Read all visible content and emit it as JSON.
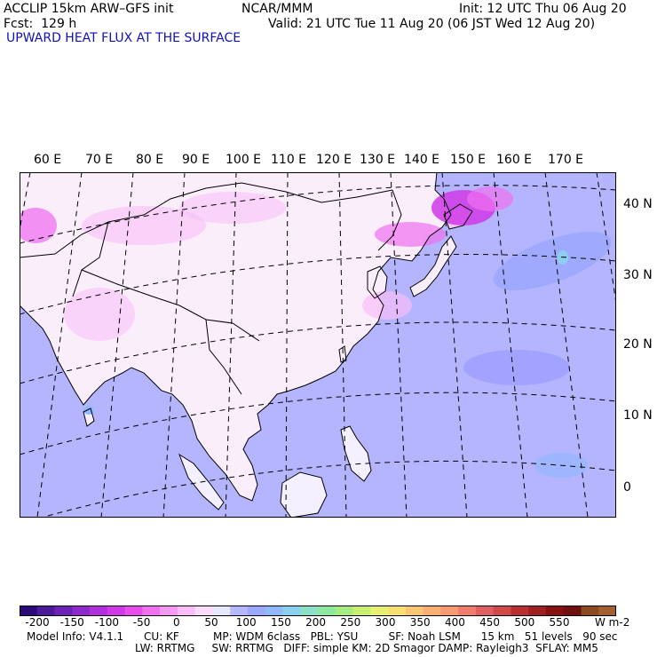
{
  "header": {
    "model": "ACCLIP 15km ARW–GFS init",
    "center": "NCAR/MMM",
    "init": "Init: 12 UTC Thu 06 Aug 20",
    "fcst": "Fcst:  129 h",
    "valid": "Valid: 21 UTC Tue 11 Aug 20 (06 JST Wed 12 Aug 20)",
    "field": "UPWARD HEAT FLUX AT THE SURFACE"
  },
  "lon_labels": [
    "60 E",
    "70 E",
    "80 E",
    "90 E",
    "100 E",
    "110 E",
    "120 E",
    "130 E",
    "140 E",
    "150 E",
    "160 E",
    "170 E"
  ],
  "lat_labels": [
    "40 N",
    "30 N",
    "20 N",
    "10 N",
    "0"
  ],
  "colorbar": {
    "ticks": [
      "-200",
      "-150",
      "-100",
      "-50",
      "0",
      "50",
      "100",
      "150",
      "200",
      "250",
      "300",
      "350",
      "400",
      "450",
      "500",
      "550"
    ],
    "unit": "W m-2",
    "colors": [
      "#2a0a78",
      "#4b1a9c",
      "#6a22b8",
      "#8c2ad0",
      "#b030e0",
      "#d038e8",
      "#e84cec",
      "#f070f0",
      "#f498f4",
      "#f8bef8",
      "#fbdcfb",
      "#e8e8ff",
      "#b8b8ff",
      "#9aa8ff",
      "#8fb8ff",
      "#8cd0f0",
      "#8ce0c8",
      "#90e8a0",
      "#a8ec80",
      "#c8f070",
      "#e8f070",
      "#f8e070",
      "#f8c870",
      "#f8b070",
      "#f89870",
      "#f07c6c",
      "#e06060",
      "#d04848",
      "#b83030",
      "#a02020",
      "#881010",
      "#701010",
      "#8a4a20",
      "#a06030"
    ]
  },
  "model_info": {
    "line1": "Model Info: V4.1.1      CU: KF          MP: WDM 6class   PBL: YSU         SF: Noah LSM      15 km   51 levels   90 sec",
    "line2": "LW: RRTMG     SW: RRTMG   DIFF: simple KM: 2D Smagor DAMP: Rayleigh3  SFLAY: MM5"
  }
}
